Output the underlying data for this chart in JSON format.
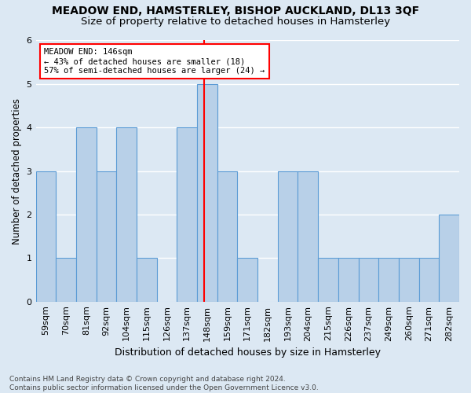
{
  "title1": "MEADOW END, HAMSTERLEY, BISHOP AUCKLAND, DL13 3QF",
  "title2": "Size of property relative to detached houses in Hamsterley",
  "xlabel": "Distribution of detached houses by size in Hamsterley",
  "ylabel": "Number of detached properties",
  "bin_labels": [
    "59sqm",
    "70sqm",
    "81sqm",
    "92sqm",
    "104sqm",
    "115sqm",
    "126sqm",
    "137sqm",
    "148sqm",
    "159sqm",
    "171sqm",
    "182sqm",
    "193sqm",
    "204sqm",
    "215sqm",
    "226sqm",
    "237sqm",
    "249sqm",
    "260sqm",
    "271sqm",
    "282sqm"
  ],
  "values": [
    3,
    1,
    4,
    3,
    4,
    1,
    0,
    4,
    5,
    3,
    1,
    0,
    3,
    3,
    1,
    1,
    1,
    1,
    1,
    1,
    2
  ],
  "bar_color": "#b8d0e8",
  "bar_edge_color": "#5b9bd5",
  "highlight_line_index": 7.85,
  "highlight_line_color": "red",
  "annotation_line1": "MEADOW END: 146sqm",
  "annotation_line2": "← 43% of detached houses are smaller (18)",
  "annotation_line3": "57% of semi-detached houses are larger (24) →",
  "annotation_box_color": "red",
  "annotation_box_fill": "white",
  "ylim": [
    0,
    6
  ],
  "yticks": [
    0,
    1,
    2,
    3,
    4,
    5,
    6
  ],
  "footnote": "Contains HM Land Registry data © Crown copyright and database right 2024.\nContains public sector information licensed under the Open Government Licence v3.0.",
  "background_color": "#dce8f3",
  "grid_color": "#ffffff",
  "title_fontsize": 10,
  "subtitle_fontsize": 9.5,
  "xlabel_fontsize": 9,
  "ylabel_fontsize": 8.5,
  "tick_fontsize": 8,
  "footnote_fontsize": 6.5
}
